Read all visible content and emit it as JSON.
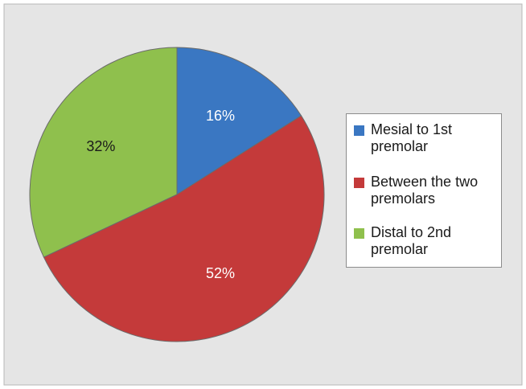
{
  "chart_data": {
    "type": "pie",
    "slices": [
      {
        "label": "Mesial to 1st premolar",
        "value": 16,
        "display": "16%",
        "color": "#3a77c2",
        "text_color": "#ffffff"
      },
      {
        "label": "Between the two premolars",
        "value": 52,
        "display": "52%",
        "color": "#c43a3a",
        "text_color": "#ffffff"
      },
      {
        "label": "Distal to 2nd premolar",
        "value": 32,
        "display": "32%",
        "color": "#8fc04d",
        "text_color": "#1a1a1a"
      }
    ],
    "legend_position": "right",
    "background_color": "#e5e5e5"
  },
  "legend": {
    "items": [
      {
        "line1": "Mesial to 1st",
        "line2": "premolar"
      },
      {
        "line1": "Between the two",
        "line2": "premolars"
      },
      {
        "line1": "Distal to 2nd",
        "line2": "premolar"
      }
    ]
  }
}
